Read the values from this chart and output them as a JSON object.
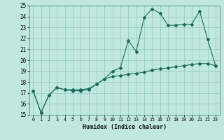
{
  "xlabel": "Humidex (Indice chaleur)",
  "background_color": "#c0e8e0",
  "line_color": "#1a6a5a",
  "grid_color": "#90c8c0",
  "ylim": [
    15,
    25
  ],
  "xlim": [
    -0.5,
    23.5
  ],
  "yticks": [
    15,
    16,
    17,
    18,
    19,
    20,
    21,
    22,
    23,
    24,
    25
  ],
  "xticks": [
    0,
    1,
    2,
    3,
    4,
    5,
    6,
    7,
    8,
    9,
    10,
    11,
    12,
    13,
    14,
    15,
    16,
    17,
    18,
    19,
    20,
    21,
    22,
    23
  ],
  "line1_x": [
    0,
    1,
    2,
    3,
    4,
    5,
    6,
    7,
    8,
    9,
    10,
    11,
    12,
    13,
    14,
    15,
    16,
    17,
    18,
    19,
    20,
    21,
    22,
    23
  ],
  "line1_y": [
    17.2,
    15.2,
    16.8,
    17.5,
    17.3,
    17.2,
    17.2,
    17.3,
    17.8,
    18.3,
    19.0,
    19.3,
    21.8,
    20.8,
    23.9,
    24.7,
    24.3,
    23.2,
    23.2,
    23.3,
    23.3,
    24.5,
    21.9,
    19.5
  ],
  "line2_x": [
    0,
    1,
    2,
    3,
    4,
    5,
    6,
    7,
    8,
    9,
    10,
    11,
    12,
    13,
    14,
    15,
    16,
    17,
    18,
    19,
    20,
    21,
    22,
    23
  ],
  "line2_y": [
    17.2,
    15.2,
    16.8,
    17.5,
    17.3,
    17.3,
    17.3,
    17.4,
    17.8,
    18.3,
    18.5,
    18.6,
    18.7,
    18.8,
    18.9,
    19.1,
    19.2,
    19.3,
    19.4,
    19.5,
    19.6,
    19.7,
    19.7,
    19.5
  ]
}
